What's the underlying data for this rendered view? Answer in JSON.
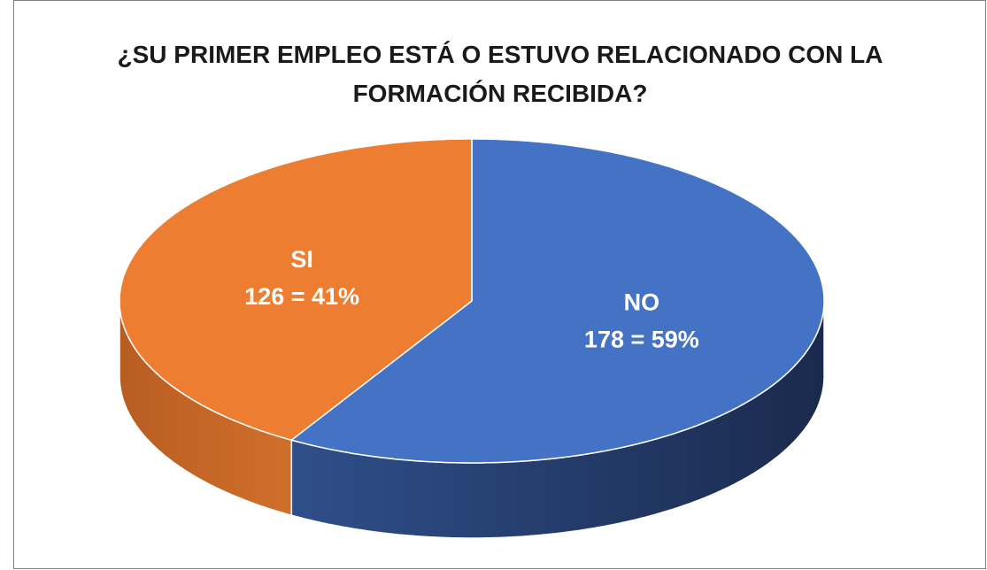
{
  "chart_data": {
    "type": "pie3d",
    "title": "¿SU PRIMER EMPLEO ESTÁ O ESTUVO RELACIONADO CON LA FORMACIÓN RECIBIDA?",
    "categories": [
      "NO",
      "SI"
    ],
    "values": [
      178,
      126
    ],
    "value_labels": [
      "178 = 59%",
      "126 = 41%"
    ],
    "colors": [
      "#4472c4",
      "#ed7d31"
    ]
  }
}
